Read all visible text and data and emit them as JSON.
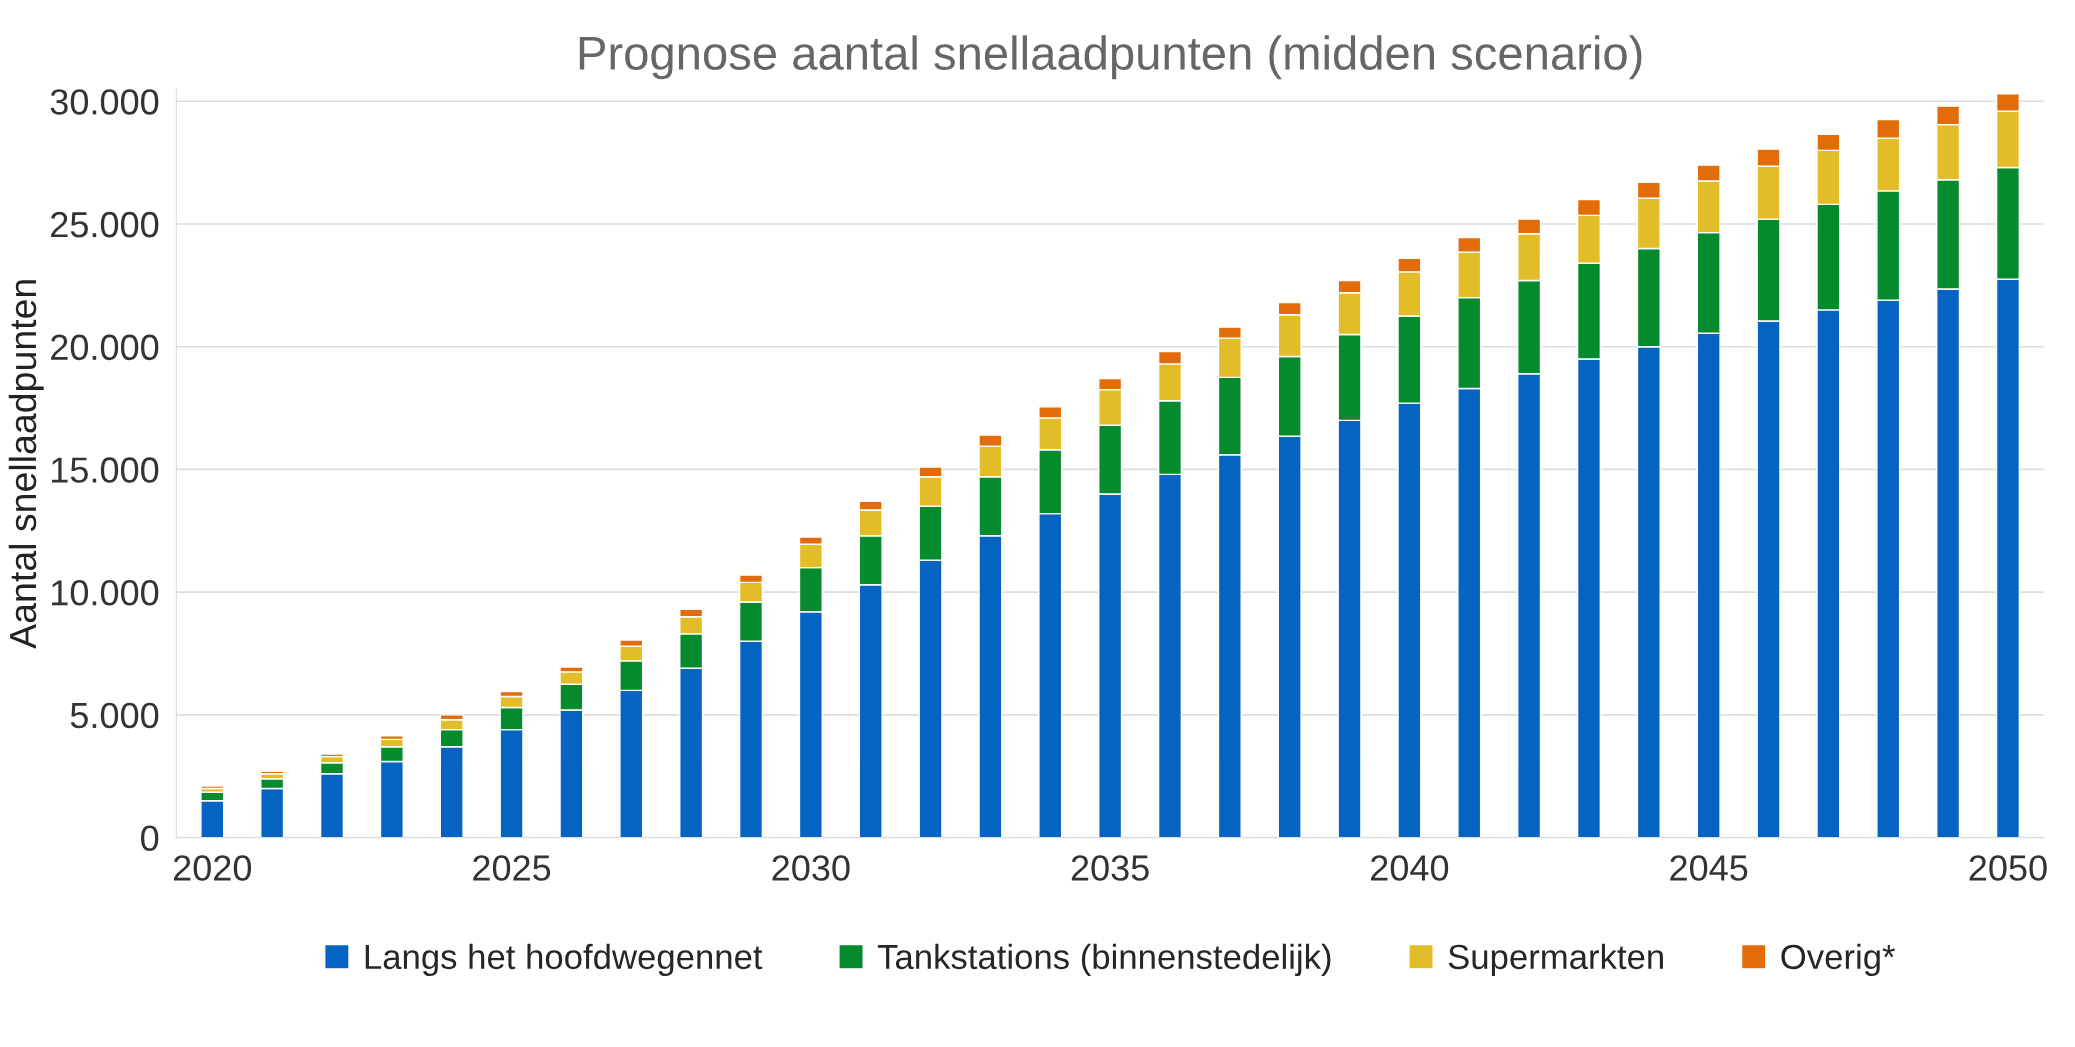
{
  "chart_data": {
    "type": "bar",
    "stacked": true,
    "title": "Prognose aantal snellaadpunten (midden scenario)",
    "ylabel": "Aantal snellaadpunten",
    "categories": [
      "2020",
      null,
      null,
      null,
      null,
      "2025",
      null,
      null,
      null,
      null,
      "2030",
      null,
      null,
      null,
      null,
      "2035",
      null,
      null,
      null,
      null,
      "2040",
      null,
      null,
      null,
      null,
      "2045",
      null,
      null,
      null,
      null,
      "2050"
    ],
    "series": [
      {
        "name": "Langs het hoofdwegennet",
        "color": "#0563c1",
        "values": [
          1500,
          2000,
          2600,
          3100,
          3700,
          4400,
          5200,
          6000,
          6900,
          8000,
          9200,
          10300,
          11300,
          12300,
          13200,
          14000,
          14800,
          15600,
          16350,
          17000,
          17700,
          18300,
          18900,
          19500,
          20000,
          20550,
          21050,
          21500,
          21900,
          22350,
          22750
        ]
      },
      {
        "name": "Tankstations (binnenstedelijk)",
        "color": "#058a2e",
        "values": [
          350,
          400,
          450,
          600,
          700,
          900,
          1050,
          1200,
          1400,
          1600,
          1800,
          2000,
          2200,
          2400,
          2600,
          2800,
          3000,
          3150,
          3250,
          3500,
          3550,
          3700,
          3800,
          3900,
          4000,
          4100,
          4150,
          4300,
          4450,
          4450,
          4550
        ]
      },
      {
        "name": "Supermarkten",
        "color": "#e3bd28",
        "values": [
          150,
          200,
          250,
          300,
          400,
          450,
          500,
          600,
          700,
          800,
          950,
          1050,
          1200,
          1250,
          1300,
          1450,
          1500,
          1600,
          1700,
          1700,
          1800,
          1850,
          1900,
          1950,
          2050,
          2100,
          2150,
          2200,
          2150,
          2250,
          2300
        ]
      },
      {
        "name": "Overig*",
        "color": "#e36c0a",
        "values": [
          100,
          100,
          100,
          150,
          200,
          200,
          200,
          250,
          300,
          300,
          300,
          350,
          400,
          450,
          450,
          450,
          500,
          450,
          500,
          500,
          550,
          600,
          600,
          650,
          650,
          650,
          700,
          650,
          750,
          750,
          700
        ]
      }
    ],
    "ylim": [
      0,
      30500
    ],
    "yticks": [
      {
        "value": 0,
        "label": "0"
      },
      {
        "value": 5000,
        "label": "5.000"
      },
      {
        "value": 10000,
        "label": "10.000"
      },
      {
        "value": 15000,
        "label": "15.000"
      },
      {
        "value": 20000,
        "label": "20.000"
      },
      {
        "value": 25000,
        "label": "25.000"
      },
      {
        "value": 30000,
        "label": "30.000"
      }
    ],
    "grid": "y",
    "legend": "bottom"
  }
}
